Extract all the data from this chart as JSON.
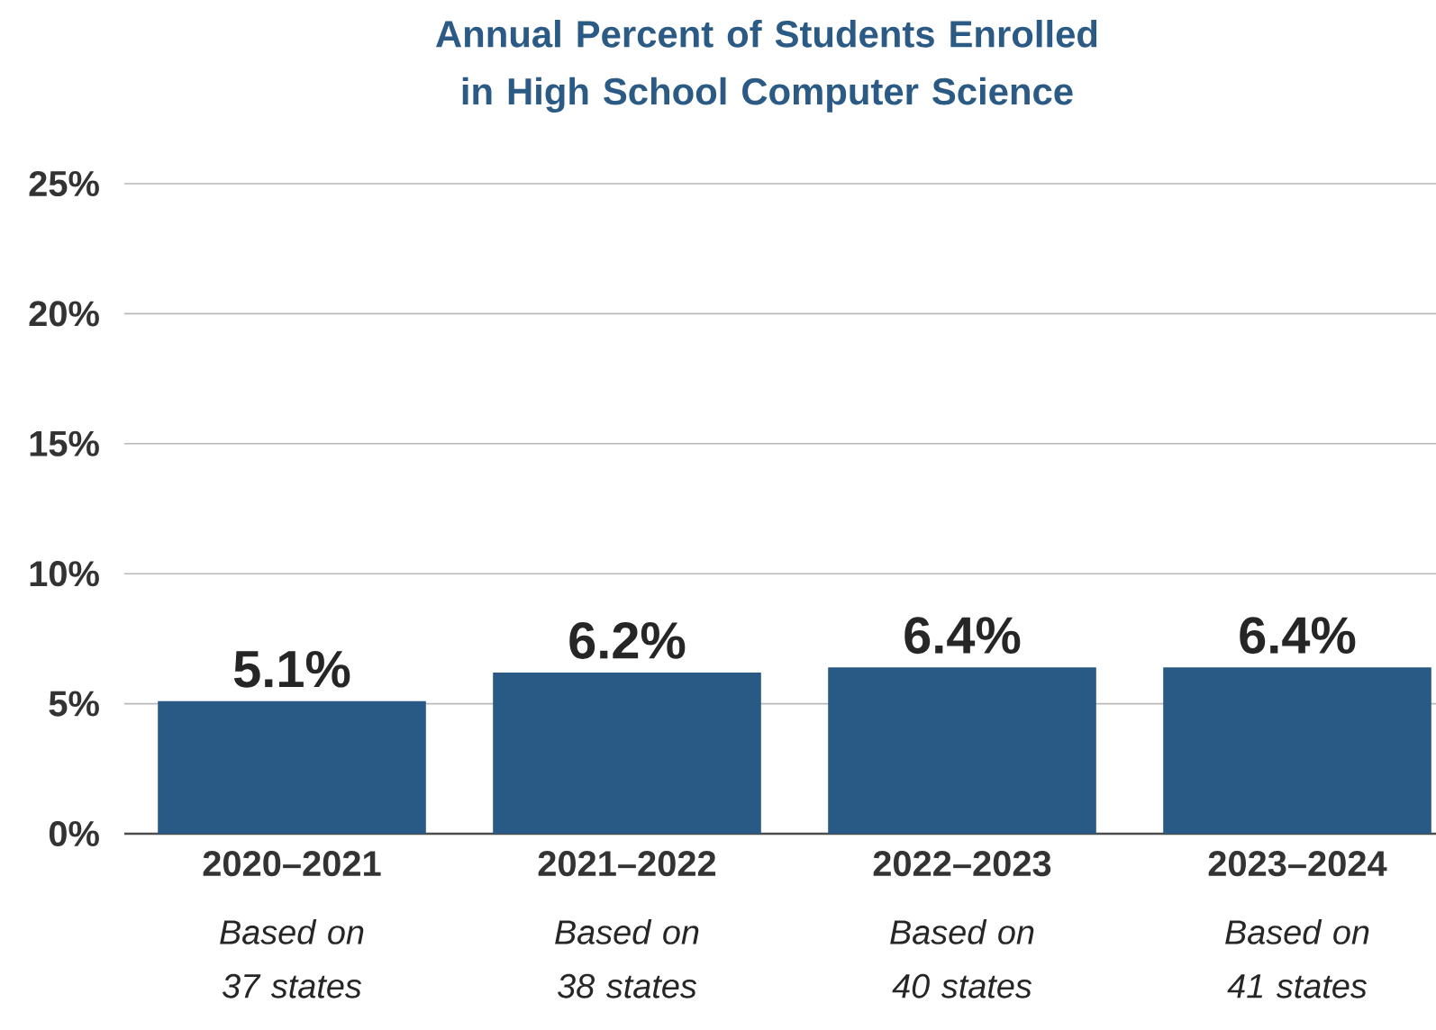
{
  "chart_data": {
    "type": "bar",
    "title": "Annual Percent of Students Enrolled in High School Computer Science",
    "categories": [
      "2020–2021",
      "2021–2022",
      "2022–2023",
      "2023–2024"
    ],
    "values": [
      5.1,
      6.2,
      6.4,
      6.4
    ],
    "value_labels": [
      "5.1%",
      "6.2%",
      "6.4%",
      "6.4%"
    ],
    "color": "#285a85",
    "ylim": [
      0,
      25
    ],
    "yticks": [
      {
        "value": 0,
        "label": "0%"
      },
      {
        "value": 5,
        "label": "5%"
      },
      {
        "value": 10,
        "label": "10%"
      },
      {
        "value": 15,
        "label": "15%"
      },
      {
        "value": 20,
        "label": "20%"
      },
      {
        "value": 25,
        "label": "25%"
      }
    ],
    "grid": "y",
    "annotations": [
      "Based on 37 states",
      "Based on 38 states",
      "Based on 40 states",
      "Based on 41 states"
    ]
  }
}
